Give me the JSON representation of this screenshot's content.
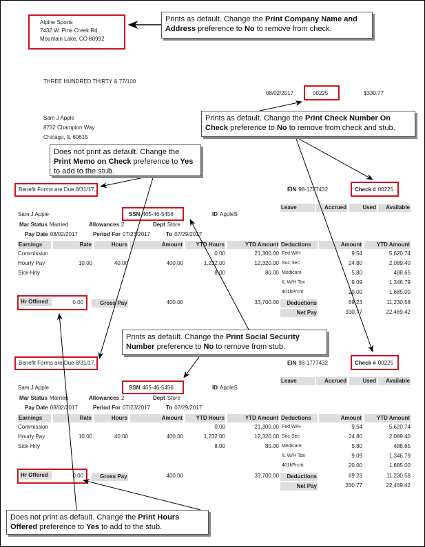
{
  "check": {
    "company": [
      "Alpine Sports",
      "7432 W. Pine Creek Rd.",
      "Mountain Lake, CO  80992"
    ],
    "amount_words": "THREE HUNDRED THIRTY & 77/100",
    "date": "08/02/2017",
    "check_number": "00225",
    "amount": "$330.77",
    "payee": [
      "Sam J Apple",
      "8732 Champion Way",
      "Chicago, IL  60615"
    ]
  },
  "callouts": {
    "company": {
      "t1": "Prints as default. Change the ",
      "b1": "Print Company Name and Address",
      "t2": " preference to ",
      "b2": "No",
      "t3": " to remove from check."
    },
    "check_number": {
      "t1": "Prints as default. Change the ",
      "b1": "Print Check Number On Check",
      "t2": " preference to ",
      "b2": "No",
      "t3": " to remove from check and stub."
    },
    "memo": {
      "t1": "Does not print as default. Change the ",
      "b1": "Print Memo on Check",
      "t2": " preference to ",
      "b2": "Yes",
      "t3": " to add to the stub."
    },
    "ssn": {
      "t1": "Prints as default. Change the ",
      "b1": "Print Social Security Number",
      "t2": " preference to ",
      "b2": "No",
      "t3": " to remove from stub."
    },
    "hours": {
      "t1": "Does not print as default. Change the ",
      "b1": "Print Hours Offered",
      "t2": " preference to ",
      "b2": "Yes",
      "t3": " to add to the stub."
    }
  },
  "stubs": [
    {
      "memo": "Benefit Forms are Due 8/31/17.",
      "ein_label": "EIN",
      "ein": "98-1777432",
      "check_label": "Check #",
      "check_number": "00225",
      "leave_headers": [
        "Leave",
        "Accrued",
        "Used",
        "Available"
      ],
      "employee": "Sam J Apple",
      "ssn_label": "SSN",
      "ssn": "465-46-5456",
      "id_label": "ID",
      "id": "AppleS",
      "mar_label": "Mar Status",
      "mar": "Married",
      "allow_label": "Allowances",
      "allow": "2",
      "dept_label": "Dept",
      "dept": "Store",
      "paydate_label": "Pay Date",
      "paydate": "08/02/2017",
      "period_label": "Period For",
      "period": "07/23/2017",
      "to_label": "To",
      "to": "07/29/2017",
      "headers": [
        "Earnings",
        "Rate",
        "Hours",
        "Amount",
        "YTD Hours",
        "YTD Amount",
        "Deductions",
        "Amount",
        "YTD Amount"
      ],
      "earnings": [
        [
          "Commission",
          "",
          "",
          "",
          "0.00",
          "21,300.00"
        ],
        [
          "Hourly Pay",
          "10.00",
          "40.00",
          "400.00",
          "1,232.00",
          "12,320.00"
        ],
        [
          "Sick-Hrly",
          "",
          "",
          "",
          "8.00",
          "80.00"
        ]
      ],
      "deductions": [
        [
          "Fed W/H",
          "9.54",
          "5,620.74"
        ],
        [
          "Soc Sec",
          "24.80",
          "2,089.40"
        ],
        [
          "Medicare",
          "5.80",
          "488.65"
        ],
        [
          "IL W/H Tax",
          "9.09",
          "1,346.79"
        ],
        [
          "401kPrcnt",
          "20.00",
          "1,685.00"
        ]
      ],
      "hr_offered_label": "Hr Offered",
      "hr_offered": "0.00",
      "gross_label": "Gross Pay",
      "gross": "400.00",
      "gross_ytd": "33,700.00",
      "ded_total_label": "Deductions",
      "ded_total": "69.23",
      "ded_total_ytd": "11,230.58",
      "net_label": "Net Pay",
      "net": "330.77",
      "net_ytd": "22,469.42"
    },
    {
      "memo": "Benefit Forms are Due 8/31/17.",
      "ein_label": "EIN",
      "ein": "98-1777432",
      "check_label": "Check #",
      "check_number": "00225",
      "leave_headers": [
        "Leave",
        "Accrued",
        "Used",
        "Available"
      ],
      "employee": "Sam J Apple",
      "ssn_label": "SSN",
      "ssn": "465-46-5456",
      "id_label": "ID",
      "id": "AppleS",
      "mar_label": "Mar Status",
      "mar": "Married",
      "allow_label": "Allowances",
      "allow": "2",
      "dept_label": "Dept",
      "dept": "Store",
      "paydate_label": "Pay Date",
      "paydate": "08/02/2017",
      "period_label": "Period For",
      "period": "07/23/2017",
      "to_label": "To",
      "to": "07/29/2017",
      "headers": [
        "Earnings",
        "Rate",
        "Hours",
        "Amount",
        "YTD Hours",
        "YTD Amount",
        "Deductions",
        "Amount",
        "YTD Amount"
      ],
      "earnings": [
        [
          "Commission",
          "",
          "",
          "",
          "0.00",
          "21,300.00"
        ],
        [
          "Hourly Pay",
          "10.00",
          "40.00",
          "400.00",
          "1,232.00",
          "12,320.00"
        ],
        [
          "Sick-Hrly",
          "",
          "",
          "",
          "8.00",
          "80.00"
        ]
      ],
      "deductions": [
        [
          "Fed W/H",
          "9.54",
          "5,620.74"
        ],
        [
          "Soc Sec",
          "24.80",
          "2,089.40"
        ],
        [
          "Medicare",
          "5.80",
          "488.65"
        ],
        [
          "IL W/H Tax",
          "9.09",
          "1,346.79"
        ],
        [
          "401kPrcnt",
          "20.00",
          "1,685.00"
        ]
      ],
      "hr_offered_label": "Hr Offered",
      "hr_offered": "0.00",
      "gross_label": "Gross Pay",
      "gross": "400.00",
      "gross_ytd": "33,700.00",
      "ded_total_label": "Deductions",
      "ded_total": "69.23",
      "ded_total_ytd": "11,230.58",
      "net_label": "Net Pay",
      "net": "330.77",
      "net_ytd": "22,469.42"
    }
  ],
  "colors": {
    "highlight_box": "#d0111b",
    "header_fill": "#dddddd"
  }
}
